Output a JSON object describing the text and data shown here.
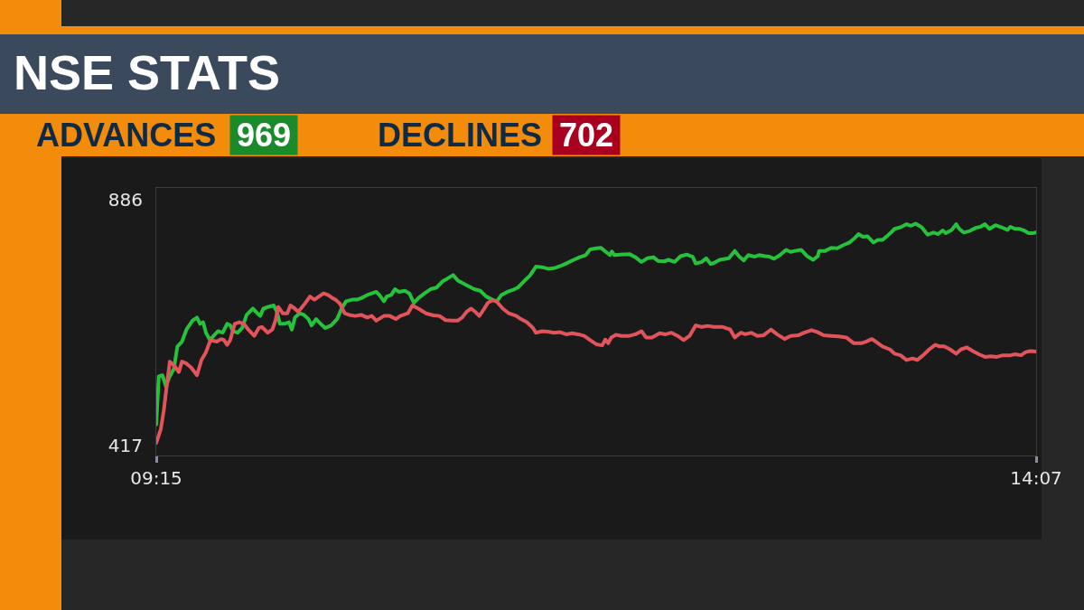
{
  "chart_data": {
    "type": "line",
    "title": "NSE STATS",
    "annotations": [
      "ADVANCES",
      "969",
      "DECLINES",
      "702"
    ],
    "xlim": [
      9.25,
      14.117
    ],
    "xticks": [
      {
        "value": 9.25,
        "label": "09:15"
      },
      {
        "value": 14.117,
        "label": "14:07"
      }
    ],
    "ylim": [
      398,
      908
    ],
    "yticks": [
      417,
      886
    ],
    "series": [
      {
        "color": "#26c23c",
        "x": [
          9.25,
          9.264,
          9.284,
          9.304,
          9.32,
          9.347,
          9.367,
          9.392,
          9.417,
          9.45,
          9.475,
          9.492,
          9.509,
          9.525,
          9.547,
          9.567,
          9.592,
          9.617,
          9.642,
          9.659,
          9.675,
          9.7,
          9.725,
          9.75,
          9.784,
          9.809,
          9.825,
          9.842,
          9.867,
          9.9,
          9.917,
          9.934,
          9.959,
          9.984,
          10.0,
          10.017,
          10.042,
          10.067,
          10.092,
          10.109,
          10.134,
          10.159,
          10.184,
          10.217,
          10.25,
          10.275,
          10.3,
          10.334,
          10.359,
          10.384,
          10.417,
          10.442,
          10.467,
          10.484,
          10.509,
          10.525,
          10.55,
          10.57,
          10.592,
          10.625,
          10.65,
          10.675,
          10.7,
          10.734,
          10.767,
          10.8,
          10.834,
          10.859,
          10.892,
          10.917,
          10.942,
          10.975,
          11.009,
          11.042,
          11.075,
          11.109,
          11.134,
          11.159,
          11.192,
          11.225,
          11.25,
          11.284,
          11.317,
          11.35,
          11.384,
          11.417,
          11.45,
          11.484,
          11.517,
          11.559,
          11.592,
          11.625,
          11.65,
          11.684,
          11.709,
          11.734,
          11.759,
          11.77,
          11.784,
          11.817,
          11.867,
          11.9,
          11.934,
          11.967,
          12.0,
          12.025,
          12.059,
          12.084,
          12.117,
          12.15,
          12.184,
          12.217,
          12.234,
          12.267,
          12.292,
          12.317,
          12.334,
          12.367,
          12.417,
          12.45,
          12.475,
          12.5,
          12.525,
          12.559,
          12.584,
          12.617,
          12.642,
          12.667,
          12.7,
          12.734,
          12.759,
          12.784,
          12.817,
          12.85,
          12.884,
          12.909,
          12.917,
          12.95,
          12.984,
          13.017,
          13.05,
          13.084,
          13.109,
          13.134,
          13.159,
          13.184,
          13.217,
          13.242,
          13.267,
          13.292,
          13.317,
          13.334,
          13.367,
          13.4,
          13.425,
          13.45,
          13.484,
          13.517,
          13.55,
          13.575,
          13.6,
          13.617,
          13.65,
          13.675,
          13.692,
          13.717,
          13.75,
          13.784,
          13.809,
          13.834,
          13.859,
          13.892,
          13.925,
          13.959,
          13.975,
          14.0,
          14.025,
          14.05,
          14.075,
          14.1,
          14.117
        ],
        "values": [
          457,
          549,
          551,
          529,
          546,
          563,
          606,
          615,
          638,
          655,
          661,
          649,
          652,
          632,
          618,
          626,
          635,
          632,
          649,
          646,
          635,
          632,
          641,
          666,
          678,
          669,
          664,
          678,
          681,
          684,
          672,
          649,
          649,
          652,
          638,
          661,
          669,
          666,
          658,
          646,
          658,
          649,
          641,
          646,
          658,
          678,
          692,
          695,
          695,
          698,
          704,
          707,
          710,
          704,
          692,
          701,
          704,
          715,
          710,
          712,
          707,
          689,
          698,
          707,
          715,
          718,
          730,
          735,
          742,
          732,
          727,
          721,
          715,
          712,
          701,
          695,
          692,
          704,
          710,
          714,
          718,
          730,
          741,
          758,
          757,
          754,
          755,
          759,
          764,
          771,
          776,
          780,
          791,
          793,
          794,
          787,
          780,
          787,
          780,
          781,
          782,
          776,
          767,
          774,
          776,
          769,
          768,
          771,
          767,
          778,
          781,
          777,
          764,
          767,
          774,
          763,
          765,
          771,
          774,
          788,
          777,
          770,
          780,
          777,
          780,
          778,
          777,
          773,
          780,
          790,
          786,
          788,
          790,
          778,
          771,
          778,
          788,
          788,
          794,
          793,
          799,
          804,
          811,
          820,
          815,
          816,
          804,
          809,
          809,
          816,
          824,
          830,
          833,
          839,
          836,
          840,
          833,
          819,
          823,
          820,
          827,
          822,
          828,
          839,
          830,
          823,
          826,
          832,
          834,
          839,
          830,
          837,
          833,
          828,
          834,
          830,
          830,
          827,
          822,
          822,
          823
        ]
      },
      {
        "color": "#e2545c",
        "x": [
          9.25,
          9.275,
          9.292,
          9.309,
          9.325,
          9.35,
          9.375,
          9.392,
          9.414,
          9.442,
          9.475,
          9.5,
          9.525,
          9.55,
          9.584,
          9.609,
          9.625,
          9.642,
          9.659,
          9.684,
          9.709,
          9.734,
          9.759,
          9.792,
          9.817,
          9.834,
          9.867,
          9.892,
          9.909,
          9.925,
          9.95,
          9.975,
          9.992,
          10.017,
          10.034,
          10.05,
          10.075,
          10.1,
          10.125,
          10.15,
          10.175,
          10.2,
          10.225,
          10.242,
          10.267,
          10.292,
          10.317,
          10.35,
          10.384,
          10.417,
          10.442,
          10.467,
          10.509,
          10.542,
          10.575,
          10.6,
          10.642,
          10.667,
          10.7,
          10.742,
          10.784,
          10.817,
          10.85,
          10.884,
          10.917,
          10.942,
          10.967,
          10.992,
          11.017,
          11.037,
          11.059,
          11.084,
          11.109,
          11.134,
          11.167,
          11.2,
          11.242,
          11.267,
          11.3,
          11.334,
          11.35,
          11.384,
          11.417,
          11.45,
          11.484,
          11.517,
          11.55,
          11.584,
          11.617,
          11.65,
          11.684,
          11.717,
          11.734,
          11.75,
          11.767,
          11.792,
          11.825,
          11.867,
          11.9,
          11.934,
          11.959,
          11.992,
          12.034,
          12.067,
          12.1,
          12.134,
          12.167,
          12.2,
          12.234,
          12.267,
          12.3,
          12.334,
          12.384,
          12.425,
          12.45,
          12.484,
          12.509,
          12.542,
          12.575,
          12.609,
          12.65,
          12.684,
          12.725,
          12.759,
          12.8,
          12.834,
          12.875,
          12.909,
          12.942,
          12.984,
          13.025,
          13.067,
          13.109,
          13.15,
          13.175,
          13.209,
          13.234,
          13.267,
          13.309,
          13.334,
          13.367,
          13.4,
          13.434,
          13.459,
          13.492,
          13.525,
          13.559,
          13.584,
          13.609,
          13.642,
          13.675,
          13.7,
          13.734,
          13.767,
          13.8,
          13.834,
          13.867,
          13.9,
          13.934,
          13.975,
          14.0,
          14.034,
          14.059,
          14.084,
          14.117
        ],
        "values": [
          422,
          448,
          485,
          534,
          577,
          569,
          557,
          577,
          574,
          566,
          551,
          580,
          595,
          618,
          615,
          620,
          618,
          609,
          618,
          649,
          652,
          649,
          638,
          626,
          641,
          643,
          632,
          638,
          655,
          681,
          669,
          669,
          684,
          678,
          672,
          678,
          689,
          701,
          695,
          701,
          707,
          704,
          698,
          695,
          687,
          669,
          666,
          664,
          666,
          661,
          664,
          655,
          664,
          664,
          658,
          664,
          669,
          684,
          678,
          669,
          665,
          664,
          656,
          655,
          655,
          661,
          672,
          678,
          671,
          664,
          675,
          689,
          694,
          691,
          678,
          669,
          664,
          658,
          652,
          641,
          632,
          635,
          634,
          632,
          633,
          629,
          631,
          629,
          626,
          618,
          610,
          608,
          619,
          612,
          623,
          628,
          626,
          626,
          629,
          635,
          623,
          623,
          631,
          629,
          632,
          626,
          618,
          626,
          646,
          643,
          645,
          643,
          643,
          638,
          623,
          632,
          629,
          632,
          626,
          627,
          638,
          629,
          620,
          626,
          627,
          632,
          637,
          633,
          627,
          626,
          625,
          623,
          612,
          612,
          615,
          620,
          614,
          606,
          600,
          592,
          589,
          580,
          583,
          580,
          589,
          600,
          609,
          606,
          606,
          600,
          592,
          600,
          604,
          597,
          591,
          586,
          587,
          586,
          589,
          589,
          591,
          589,
          595,
          597,
          596
        ]
      }
    ]
  }
}
